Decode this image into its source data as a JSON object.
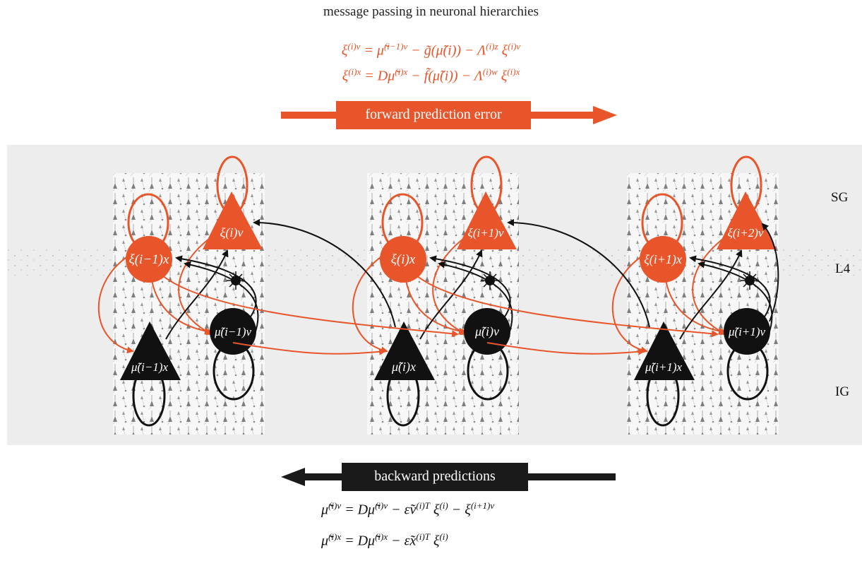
{
  "title": "message passing in neuronal hierarchies",
  "forward_equations": [
    "ξ(i)v = μ̃(i−1)v − g̃(μ̃(i)) − Λ(i)z ξ(i)v",
    "ξ(i)x = Dμ̃(i)x − f̃(μ̃(i)) − Λ(i)w ξ(i)x"
  ],
  "forward_label": "forward prediction error",
  "backward_label": "backward predictions",
  "backward_equations": [
    "μ̃̇(i)v = Dμ̃(i)v − ε̃v(i)T ξ(i) − ξ(i+1)v",
    "μ̃̇(i)x = Dμ̃(i)x − ε̃x(i)T ξ(i)"
  ],
  "layers": [
    "SG",
    "L4",
    "IG"
  ],
  "colors": {
    "error": "#e8552a",
    "prediction": "#1a1a1a",
    "band": "#ededed"
  },
  "columns": [
    {
      "error_x_node": "ξ(i−1)x",
      "error_v_node": "ξ(i)v",
      "pred_x_node": "μ̃(i−1)x",
      "pred_v_node": "μ̃(i−1)v"
    },
    {
      "error_x_node": "ξ(i)x",
      "error_v_node": "ξ(i+1)v",
      "pred_x_node": "μ̃(i)x",
      "pred_v_node": "μ̃(i)v"
    },
    {
      "error_x_node": "ξ(i+1)x",
      "error_v_node": "ξ(i+2)v",
      "pred_x_node": "μ̃(i+1)x",
      "pred_v_node": "μ̃(i+1)v"
    }
  ]
}
